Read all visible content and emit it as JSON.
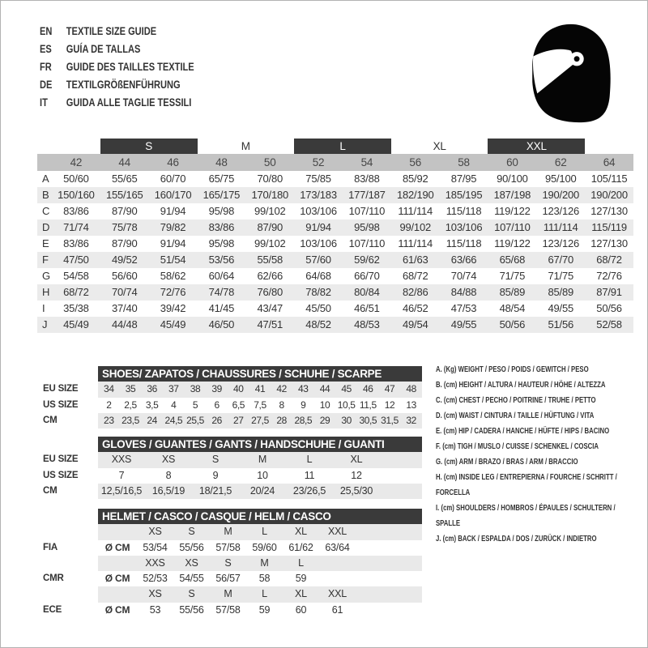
{
  "colors": {
    "header_bar": "#3a3a3a",
    "size_band": "#c3c3c3",
    "row_alt": "#ebebeb",
    "row_alt_light": "#e9e9e9",
    "text": "#333333"
  },
  "logo_icon": "helmet-icon",
  "languages": [
    {
      "code": "EN",
      "title": "TEXTILE SIZE GUIDE"
    },
    {
      "code": "ES",
      "title": "GUÍA DE TALLAS"
    },
    {
      "code": "FR",
      "title": "GUIDE DES TAILLES TEXTILE"
    },
    {
      "code": "DE",
      "title": "TEXTILGRÖßENFÜHRUNG"
    },
    {
      "code": "IT",
      "title": "GUIDA ALLE TAGLIE TESSILI"
    }
  ],
  "main_table": {
    "size_groups": [
      {
        "label": "S",
        "dark": true
      },
      {
        "label": "M",
        "dark": false
      },
      {
        "label": "L",
        "dark": true
      },
      {
        "label": "XL",
        "dark": false
      },
      {
        "label": "XXL",
        "dark": true
      }
    ],
    "numeric_sizes": [
      "42",
      "44",
      "46",
      "48",
      "50",
      "52",
      "54",
      "56",
      "58",
      "60",
      "62",
      "64"
    ],
    "rows": [
      {
        "key": "A",
        "values": [
          "50/60",
          "55/65",
          "60/70",
          "65/75",
          "70/80",
          "75/85",
          "83/88",
          "85/92",
          "87/95",
          "90/100",
          "95/100",
          "105/115"
        ]
      },
      {
        "key": "B",
        "values": [
          "150/160",
          "155/165",
          "160/170",
          "165/175",
          "170/180",
          "173/183",
          "177/187",
          "182/190",
          "185/195",
          "187/198",
          "190/200",
          "190/200"
        ]
      },
      {
        "key": "C",
        "values": [
          "83/86",
          "87/90",
          "91/94",
          "95/98",
          "99/102",
          "103/106",
          "107/110",
          "111/114",
          "115/118",
          "119/122",
          "123/126",
          "127/130"
        ]
      },
      {
        "key": "D",
        "values": [
          "71/74",
          "75/78",
          "79/82",
          "83/86",
          "87/90",
          "91/94",
          "95/98",
          "99/102",
          "103/106",
          "107/110",
          "111/114",
          "115/119"
        ]
      },
      {
        "key": "E",
        "values": [
          "83/86",
          "87/90",
          "91/94",
          "95/98",
          "99/102",
          "103/106",
          "107/110",
          "111/114",
          "115/118",
          "119/122",
          "123/126",
          "127/130"
        ]
      },
      {
        "key": "F",
        "values": [
          "47/50",
          "49/52",
          "51/54",
          "53/56",
          "55/58",
          "57/60",
          "59/62",
          "61/63",
          "63/66",
          "65/68",
          "67/70",
          "68/72"
        ]
      },
      {
        "key": "G",
        "values": [
          "54/58",
          "56/60",
          "58/62",
          "60/64",
          "62/66",
          "64/68",
          "66/70",
          "68/72",
          "70/74",
          "71/75",
          "71/75",
          "72/76"
        ]
      },
      {
        "key": "H",
        "values": [
          "68/72",
          "70/74",
          "72/76",
          "74/78",
          "76/80",
          "78/82",
          "80/84",
          "82/86",
          "84/88",
          "85/89",
          "85/89",
          "87/91"
        ]
      },
      {
        "key": "I",
        "values": [
          "35/38",
          "37/40",
          "39/42",
          "41/45",
          "43/47",
          "45/50",
          "46/51",
          "46/52",
          "47/53",
          "48/54",
          "49/55",
          "50/56"
        ]
      },
      {
        "key": "J",
        "values": [
          "45/49",
          "44/48",
          "45/49",
          "46/50",
          "47/51",
          "48/52",
          "48/53",
          "49/54",
          "49/55",
          "50/56",
          "51/56",
          "52/58"
        ]
      }
    ]
  },
  "shoes_table": {
    "title": "SHOES/ ZAPATOS / CHAUSSURES / SCHUHE / SCARPE",
    "rows": [
      {
        "label": "EU SIZE",
        "cells": [
          "34",
          "35",
          "36",
          "37",
          "38",
          "39",
          "40",
          "41",
          "42",
          "43",
          "44",
          "45",
          "46",
          "47",
          "48"
        ]
      },
      {
        "label": "US SIZE",
        "cells": [
          "2",
          "2,5",
          "3,5",
          "4",
          "5",
          "6",
          "6,5",
          "7,5",
          "8",
          "9",
          "10",
          "10,5",
          "11,5",
          "12",
          "13"
        ]
      },
      {
        "label": "CM",
        "cells": [
          "23",
          "23,5",
          "24",
          "24,5",
          "25,5",
          "26",
          "27",
          "27,5",
          "28",
          "28,5",
          "29",
          "30",
          "30,5",
          "31,5",
          "32"
        ]
      }
    ]
  },
  "gloves_table": {
    "title": "GLOVES / GUANTES / GANTS / HANDSCHUHE / GUANTI",
    "rows": [
      {
        "label": "EU SIZE",
        "cells": [
          "XXS",
          "XS",
          "S",
          "M",
          "L",
          "XL"
        ]
      },
      {
        "label": "US SIZE",
        "cells": [
          "7",
          "8",
          "9",
          "10",
          "11",
          "12"
        ]
      },
      {
        "label": "CM",
        "cells": [
          "12,5/16,5",
          "16,5/19",
          "18/21,5",
          "20/24",
          "23/26,5",
          "25,5/30"
        ]
      }
    ]
  },
  "helmet_table": {
    "title": "HELMET / CASCO / CASQUE / HELM / CASCO",
    "rows": [
      {
        "type": "sizes",
        "cells": [
          "XS",
          "S",
          "M",
          "L",
          "XL",
          "XXL"
        ]
      },
      {
        "type": "values",
        "label": "FIA",
        "unit": "Ø CM",
        "cells": [
          "53/54",
          "55/56",
          "57/58",
          "59/60",
          "61/62",
          "63/64"
        ]
      },
      {
        "type": "sizes",
        "cells": [
          "XXS",
          "XS",
          "S",
          "M",
          "L"
        ]
      },
      {
        "type": "values",
        "label": "CMR",
        "unit": "Ø CM",
        "cells": [
          "52/53",
          "54/55",
          "56/57",
          "58",
          "59"
        ]
      },
      {
        "type": "sizes",
        "cells": [
          "XS",
          "S",
          "M",
          "L",
          "XL",
          "XXL"
        ]
      },
      {
        "type": "values",
        "label": "ECE",
        "unit": "Ø CM",
        "cells": [
          "53",
          "55/56",
          "57/58",
          "59",
          "60",
          "61"
        ]
      }
    ]
  },
  "legend": [
    "A. (Kg) WEIGHT / PESO / POIDS / GEWITCH / PESO",
    "B. (cm) HEIGHT / ALTURA / HAUTEUR / HÖHE / ALTEZZA",
    "C. (cm) CHEST / PECHO / POITRINE / TRUHE / PETTO",
    "D. (cm) WAIST / CINTURA / TAILLE / HÜFTUNG / VITA",
    "E. (cm) HIP / CADERA / HANCHE / HÜFTE / HIPS / BACINO",
    "F. (cm) TIGH / MUSLO / CUISSE / SCHENKEL / COSCIA",
    "G. (cm) ARM / BRAZO / BRAS / ARM / BRACCIO",
    "H. (cm) INSIDE LEG / ENTREPIERNA / FOURCHE / SCHRITT / FORCELLA",
    "I. (cm) SHOULDERS / HOMBROS / ÉPAULES / SCHULTERN / SPALLE",
    "J. (cm) BACK / ESPALDA / DOS / ZURÜCK / INDIETRO"
  ]
}
